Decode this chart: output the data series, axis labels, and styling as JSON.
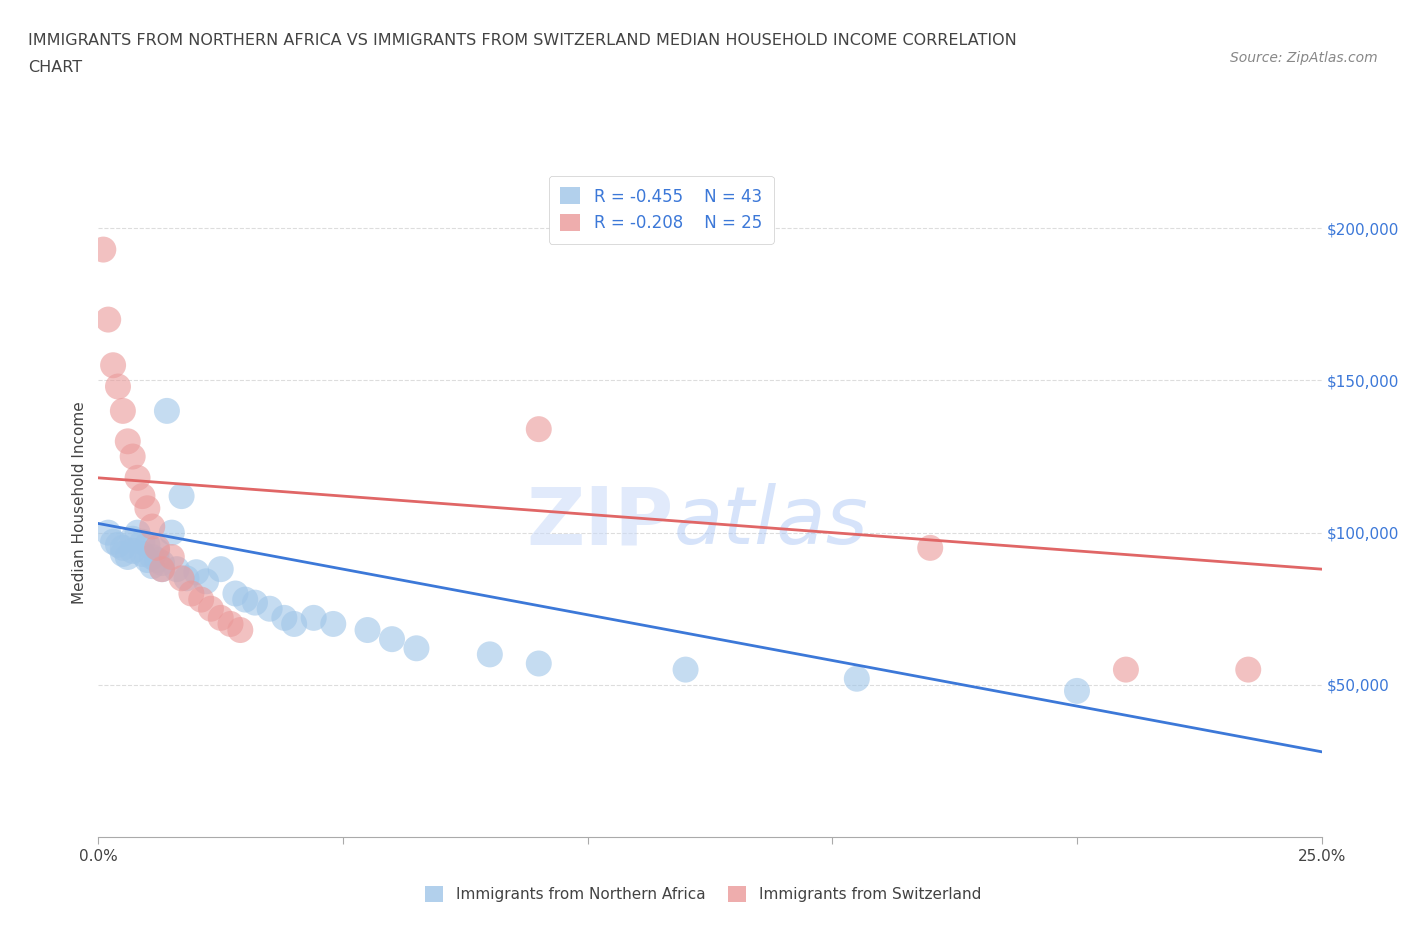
{
  "title_line1": "IMMIGRANTS FROM NORTHERN AFRICA VS IMMIGRANTS FROM SWITZERLAND MEDIAN HOUSEHOLD INCOME CORRELATION",
  "title_line2": "CHART",
  "source": "Source: ZipAtlas.com",
  "ylabel": "Median Household Income",
  "xmin": 0.0,
  "xmax": 0.25,
  "ymin": 0,
  "ymax": 220000,
  "yticks": [
    50000,
    100000,
    150000,
    200000
  ],
  "ytick_labels": [
    "$50,000",
    "$100,000",
    "$150,000",
    "$200,000"
  ],
  "xticks": [
    0.0,
    0.05,
    0.1,
    0.15,
    0.2,
    0.25
  ],
  "xtick_labels": [
    "0.0%",
    "",
    "",
    "",
    "",
    "25.0%"
  ],
  "grid_color": "#dddddd",
  "watermark_zip": "ZIP",
  "watermark_atlas": "atlas",
  "blue_color": "#9fc5e8",
  "pink_color": "#ea9999",
  "blue_line_color": "#3c78d8",
  "pink_line_color": "#e06666",
  "legend_R1": "R = -0.455",
  "legend_N1": "N = 43",
  "legend_R2": "R = -0.208",
  "legend_N2": "N = 25",
  "blue_scatter_x": [
    0.002,
    0.003,
    0.004,
    0.005,
    0.005,
    0.006,
    0.007,
    0.007,
    0.008,
    0.009,
    0.009,
    0.01,
    0.01,
    0.011,
    0.011,
    0.012,
    0.012,
    0.013,
    0.013,
    0.014,
    0.015,
    0.016,
    0.017,
    0.018,
    0.02,
    0.022,
    0.025,
    0.028,
    0.03,
    0.032,
    0.035,
    0.038,
    0.04,
    0.044,
    0.048,
    0.055,
    0.06,
    0.065,
    0.08,
    0.09,
    0.12,
    0.155,
    0.2
  ],
  "blue_scatter_y": [
    100000,
    97000,
    96000,
    95000,
    93000,
    92000,
    98000,
    94000,
    100000,
    97000,
    93000,
    96000,
    91000,
    92000,
    89000,
    94000,
    91000,
    90000,
    88000,
    140000,
    100000,
    88000,
    112000,
    85000,
    87000,
    84000,
    88000,
    80000,
    78000,
    77000,
    75000,
    72000,
    70000,
    72000,
    70000,
    68000,
    65000,
    62000,
    60000,
    57000,
    55000,
    52000,
    48000
  ],
  "pink_scatter_x": [
    0.001,
    0.002,
    0.003,
    0.004,
    0.005,
    0.006,
    0.007,
    0.008,
    0.009,
    0.01,
    0.011,
    0.012,
    0.013,
    0.015,
    0.017,
    0.019,
    0.021,
    0.023,
    0.025,
    0.027,
    0.029,
    0.09,
    0.17,
    0.21,
    0.235
  ],
  "pink_scatter_y": [
    193000,
    170000,
    155000,
    148000,
    140000,
    130000,
    125000,
    118000,
    112000,
    108000,
    102000,
    95000,
    88000,
    92000,
    85000,
    80000,
    78000,
    75000,
    72000,
    70000,
    68000,
    134000,
    95000,
    55000,
    55000
  ],
  "blue_trend_x": [
    0.0,
    0.25
  ],
  "blue_trend_y": [
    103000,
    28000
  ],
  "pink_trend_x": [
    0.0,
    0.25
  ],
  "pink_trend_y": [
    118000,
    88000
  ],
  "bg_color": "#ffffff",
  "title_color": "#434343",
  "tick_color": "#434343",
  "right_tick_color": "#3c78d8",
  "source_color": "#888888"
}
